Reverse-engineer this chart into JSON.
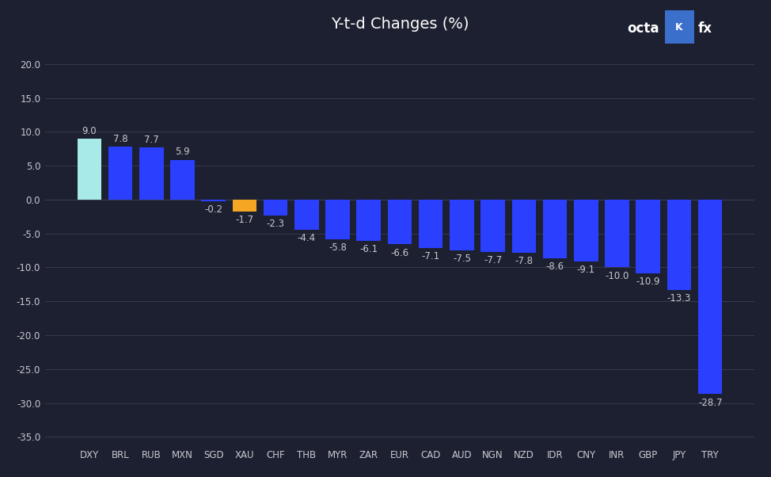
{
  "categories": [
    "DXY",
    "BRL",
    "RUB",
    "MXN",
    "SGD",
    "XAU",
    "CHF",
    "THB",
    "MYR",
    "ZAR",
    "EUR",
    "CAD",
    "AUD",
    "NGN",
    "NZD",
    "IDR",
    "CNY",
    "INR",
    "GBP",
    "JPY",
    "TRY"
  ],
  "values": [
    9.0,
    7.8,
    7.7,
    5.9,
    -0.2,
    -1.7,
    -2.3,
    -4.4,
    -5.8,
    -6.1,
    -6.6,
    -7.1,
    -7.5,
    -7.7,
    -7.8,
    -8.6,
    -9.1,
    -10.0,
    -10.9,
    -13.3,
    -28.7
  ],
  "bar_colors": [
    "#a8eae8",
    "#2b3fff",
    "#2b3fff",
    "#2b3fff",
    "#2b3fff",
    "#f5a623",
    "#2b3fff",
    "#2b3fff",
    "#2b3fff",
    "#2b3fff",
    "#2b3fff",
    "#2b3fff",
    "#2b3fff",
    "#2b3fff",
    "#2b3fff",
    "#2b3fff",
    "#2b3fff",
    "#2b3fff",
    "#2b3fff",
    "#2b3fff",
    "#2b3fff"
  ],
  "title": "Y-t-d Changes (%)",
  "ylim": [
    -36.0,
    23.0
  ],
  "yticks": [
    -35.0,
    -30.0,
    -25.0,
    -20.0,
    -15.0,
    -10.0,
    -5.0,
    0.0,
    5.0,
    10.0,
    15.0,
    20.0
  ],
  "background_color": "#1c2030",
  "grid_color": "#3a3f55",
  "text_color": "#c8c8d0",
  "title_color": "#ffffff",
  "label_fontsize": 8.5,
  "title_fontsize": 14,
  "bar_width": 0.78
}
